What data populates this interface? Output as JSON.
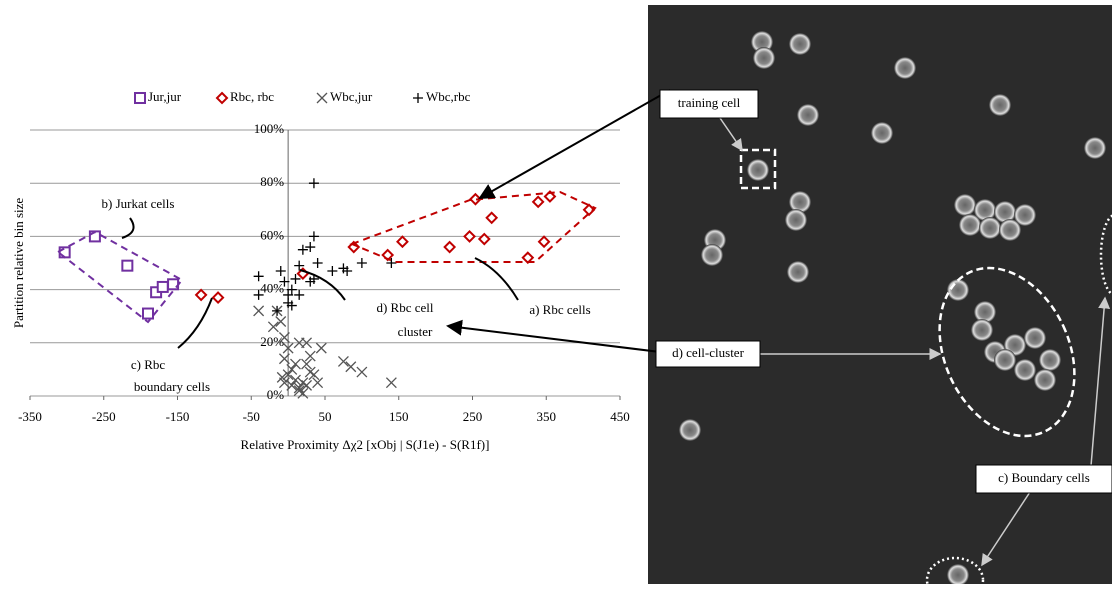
{
  "chart_data": {
    "type": "scatter",
    "x_label": "Relative Proximity Δχ2 [xObj | S(J1e) - S(R1f)]",
    "y_label": "Partition relative bin size",
    "xlim": [
      -350,
      450
    ],
    "xticks": [
      -350,
      -250,
      -150,
      -50,
      50,
      150,
      250,
      350,
      450
    ],
    "ylim": [
      0,
      100
    ],
    "yticks": [
      {
        "value": 0,
        "label": "0%"
      },
      {
        "value": 20,
        "label": "20%"
      },
      {
        "value": 40,
        "label": "40%"
      },
      {
        "value": 60,
        "label": "60%"
      },
      {
        "value": 80,
        "label": "80%"
      },
      {
        "value": 100,
        "label": "100%"
      }
    ],
    "grid": true,
    "legend": "top",
    "series": [
      {
        "name": "Jur,jur",
        "color": "#7030a0",
        "marker": "square",
        "x": [
          -303,
          -262,
          -218,
          -190,
          -179,
          -170,
          -156
        ],
        "values": [
          54,
          60,
          49,
          31,
          39,
          41,
          42
        ]
      },
      {
        "name": "Rbc, rbc",
        "color": "#c00000",
        "marker": "diamond",
        "x": [
          -118,
          -95,
          20,
          89,
          135,
          155,
          219,
          246,
          254,
          266,
          276,
          325,
          339,
          347,
          355,
          408
        ],
        "values": [
          38,
          37,
          46,
          56,
          53,
          58,
          56,
          60,
          74,
          59,
          67,
          52,
          73,
          58,
          75,
          70
        ]
      },
      {
        "name": "Wbc,jur",
        "color": "#555555",
        "marker": "x",
        "x": [
          -15,
          -20,
          -10,
          -5,
          0,
          5,
          -5,
          10,
          15,
          20,
          25,
          30,
          35,
          25,
          15,
          25,
          10,
          0,
          -8,
          5,
          15,
          40,
          30,
          45,
          75,
          85,
          100,
          140,
          -40,
          -5,
          20
        ],
        "values": [
          32,
          26,
          28,
          22,
          18,
          10,
          14,
          6,
          3,
          5,
          12,
          15,
          8,
          4,
          20,
          20,
          12,
          8,
          7,
          4,
          2,
          5,
          9,
          18,
          13,
          11,
          9,
          5,
          32,
          5,
          1
        ]
      },
      {
        "name": "Wbc,rbc",
        "color": "#000000",
        "marker": "plus",
        "x": [
          -40,
          -40,
          -10,
          0,
          5,
          0,
          5,
          10,
          -5,
          15,
          20,
          30,
          35,
          40,
          35,
          30,
          35,
          60,
          75,
          80,
          100,
          140,
          -15,
          15
        ],
        "values": [
          38,
          45,
          47,
          38,
          34,
          35,
          40,
          44,
          43,
          49,
          55,
          56,
          60,
          50,
          80,
          43,
          44,
          47,
          48,
          47,
          50,
          50,
          32,
          38
        ]
      }
    ],
    "annotations": [
      [
        "b) Jurkat cells"
      ],
      [
        "c) Rbc",
        "boundary cells"
      ],
      [
        "d) Rbc cell",
        "cluster"
      ],
      [
        "a) Rbc cells"
      ]
    ]
  },
  "image_labels": {
    "training_cell": "training cell",
    "cell_cluster": "d) cell-cluster",
    "boundary_cells": "c) Boundary cells"
  }
}
